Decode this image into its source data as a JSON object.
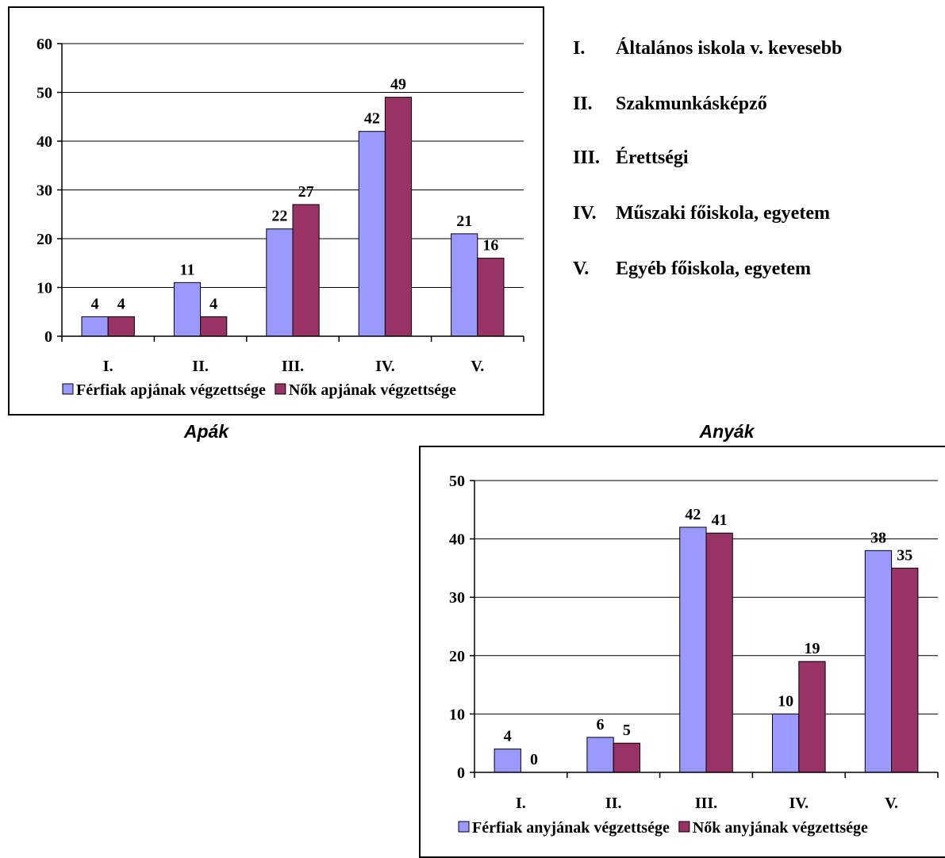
{
  "categories_legend": [
    {
      "num": "I.",
      "text": "Általános iskola v. kevesebb"
    },
    {
      "num": "II.",
      "text": "Szakmunkásképző"
    },
    {
      "num": "III.",
      "text": "Érettségi"
    },
    {
      "num": "IV.",
      "text": "Műszaki főiskola, egyetem"
    },
    {
      "num": "V.",
      "text": "Egyéb főiskola, egyetem"
    }
  ],
  "colors": {
    "series1": "#9999ff",
    "series2": "#993366",
    "outline": "#000000"
  },
  "chart_data": [
    {
      "type": "bar",
      "caption": "Apák",
      "categories": [
        "I.",
        "II.",
        "III.",
        "IV.",
        "V."
      ],
      "series": [
        {
          "name": "Férfiak apjának végzettsége",
          "values": [
            4,
            11,
            22,
            42,
            21
          ]
        },
        {
          "name": "Nők apjának végzettsége",
          "values": [
            4,
            4,
            27,
            49,
            16
          ]
        }
      ],
      "ylim": [
        0,
        60
      ],
      "yticks": [
        0,
        10,
        20,
        30,
        40,
        50,
        60
      ],
      "grid": true,
      "legend": "bottom"
    },
    {
      "type": "bar",
      "caption": "Anyák",
      "categories": [
        "I.",
        "II.",
        "III.",
        "IV.",
        "V."
      ],
      "series": [
        {
          "name": "Férfiak anyjának végzettsége",
          "values": [
            4,
            6,
            42,
            10,
            38
          ]
        },
        {
          "name": "Nők anyjának végzettsége",
          "values": [
            0,
            5,
            41,
            19,
            35
          ]
        }
      ],
      "ylim": [
        0,
        50
      ],
      "yticks": [
        0,
        10,
        20,
        30,
        40,
        50
      ],
      "grid": true,
      "legend": "bottom"
    }
  ]
}
